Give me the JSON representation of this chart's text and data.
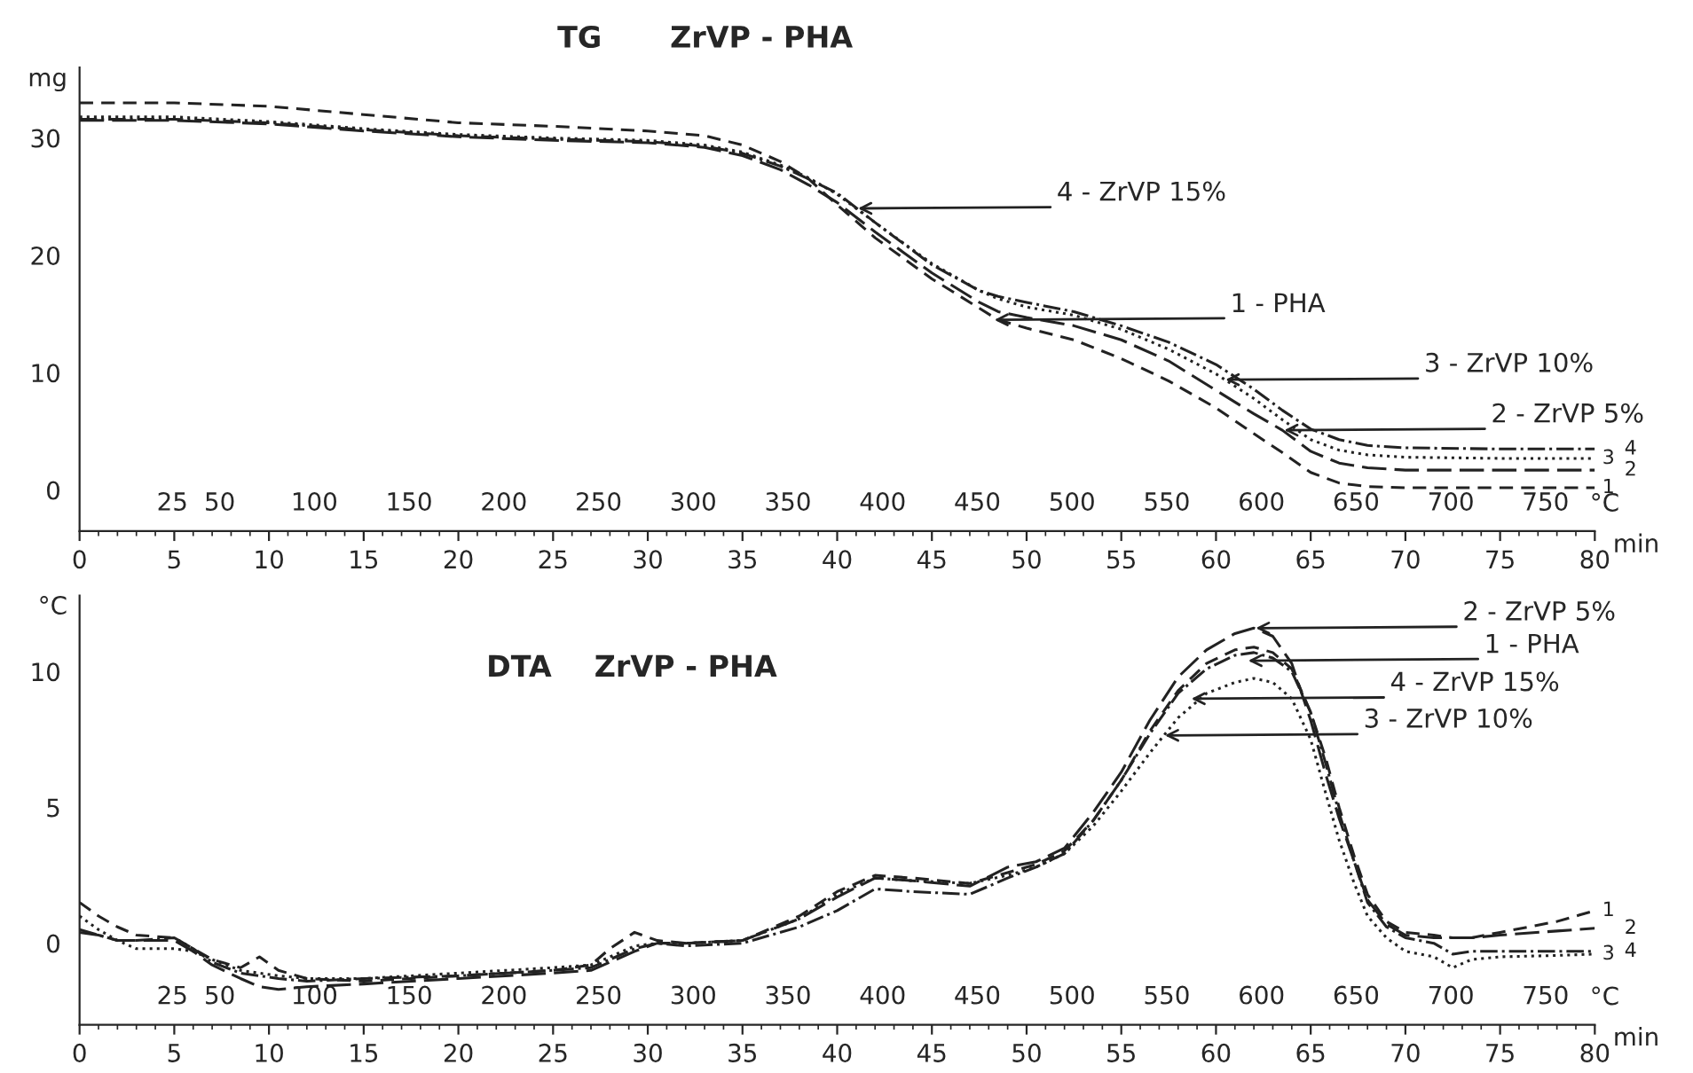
{
  "chart_data": [
    {
      "type": "line",
      "title": "TG",
      "subtitle": "ZrVP - PHA",
      "ylabel": "mg",
      "xlabel": "min",
      "x2label": "°C",
      "x": [
        0,
        5,
        10,
        15,
        20,
        25,
        30,
        33,
        35,
        37,
        38.5,
        40,
        42,
        45,
        47.5,
        48.5,
        50,
        52.5,
        55,
        57.5,
        60,
        62,
        63.5,
        65,
        66.5,
        68,
        70,
        75,
        80
      ],
      "series": [
        {
          "name": "1",
          "color": "#222222",
          "line_style": "dashed",
          "values": [
            33,
            33,
            32.7,
            32,
            31.3,
            31,
            30.6,
            30.2,
            29.4,
            28,
            26.5,
            24.3,
            21.5,
            18,
            15.5,
            14.5,
            13.8,
            12.8,
            11.2,
            9.3,
            7,
            4.8,
            3.2,
            1.5,
            0.6,
            0.3,
            0.2,
            0.2,
            0.2
          ]
        },
        {
          "name": "2",
          "color": "#222222",
          "line_style": "dashed",
          "values": [
            31.5,
            31.5,
            31.2,
            30.6,
            30.1,
            29.8,
            29.6,
            29.2,
            28.5,
            27.3,
            26,
            24.5,
            22,
            18.5,
            16,
            15.2,
            14.7,
            14,
            12.8,
            11,
            8.5,
            6.5,
            5.1,
            3.3,
            2.3,
            1.9,
            1.7,
            1.7,
            1.7
          ]
        },
        {
          "name": "3",
          "color": "#222222",
          "line_style": "dotted",
          "values": [
            31.8,
            31.8,
            31.4,
            30.8,
            30.3,
            30,
            29.8,
            29.4,
            28.8,
            27.7,
            26.6,
            25.2,
            22.8,
            19.3,
            17,
            16.3,
            15.6,
            14.9,
            13.7,
            12,
            9.9,
            7.8,
            6,
            4.3,
            3.4,
            3,
            2.8,
            2.7,
            2.7
          ]
        },
        {
          "name": "4",
          "color": "#222222",
          "line_style": "dashdot",
          "values": [
            31.6,
            31.6,
            31.3,
            30.7,
            30.2,
            29.9,
            29.7,
            29.3,
            28.7,
            27.6,
            26.5,
            25.3,
            22.8,
            19.2,
            17,
            16.5,
            16,
            15.2,
            14,
            12.6,
            10.7,
            8.6,
            6.8,
            5.2,
            4.3,
            3.8,
            3.6,
            3.5,
            3.5
          ]
        }
      ],
      "annotations": [
        {
          "text": "4 - ZrVP 15%",
          "x": 41.1,
          "y": 24.0
        },
        {
          "text": "1 - PHA",
          "x": 48.3,
          "y": 14.5
        },
        {
          "text": "3 - ZrVP 10%",
          "x": 60.5,
          "y": 9.4
        },
        {
          "text": "2 - ZrVP 5%",
          "x": 63.6,
          "y": 5.1
        }
      ],
      "xlim": [
        0,
        80
      ],
      "xticks": [
        0,
        5,
        10,
        15,
        20,
        25,
        30,
        35,
        40,
        45,
        50,
        55,
        60,
        65,
        70,
        75,
        {
          "value": 80,
          "label": "80"
        }
      ],
      "ylim": [
        -3.5,
        36
      ],
      "yticks": [
        0,
        10,
        20,
        30
      ],
      "x2lim": [
        -24,
        776
      ],
      "x2ticks": [
        25,
        50,
        100,
        150,
        200,
        250,
        300,
        350,
        400,
        450,
        500,
        550,
        600,
        650,
        700,
        750
      ],
      "grid": false,
      "legend": false
    },
    {
      "type": "line",
      "title": "DTA",
      "subtitle": "ZrVP - PHA",
      "ylabel": "°C",
      "xlabel": "min",
      "x2label": "°C",
      "x": [
        0,
        1,
        2,
        3,
        5,
        6,
        7,
        8.5,
        9.5,
        10.5,
        12,
        15,
        20,
        25,
        27,
        28,
        29.3,
        30.5,
        32,
        35,
        38,
        40,
        42,
        44,
        47,
        49,
        50.5,
        52,
        53.5,
        55,
        56.5,
        58,
        59.5,
        61,
        62,
        63,
        64,
        65,
        65.8,
        66.5,
        67.3,
        68,
        69,
        70,
        71.5,
        72.5,
        73.5,
        75,
        78,
        80
      ],
      "series": [
        {
          "name": "1",
          "color": "#222222",
          "line_style": "dashed",
          "values": [
            1.5,
            1.0,
            0.6,
            0.3,
            0.2,
            -0.2,
            -0.6,
            -0.9,
            -0.5,
            -1.0,
            -1.3,
            -1.4,
            -1.2,
            -1.0,
            -0.8,
            -0.2,
            0.4,
            0.1,
            0.0,
            0.1,
            1.0,
            1.9,
            2.5,
            2.4,
            2.2,
            2.6,
            2.9,
            3.4,
            4.5,
            6,
            7.8,
            9.3,
            10.3,
            10.8,
            10.9,
            10.7,
            10.1,
            8.5,
            6.8,
            5,
            3.2,
            1.8,
            0.8,
            0.4,
            0.3,
            0.2,
            0.2,
            0.4,
            0.8,
            1.2
          ]
        },
        {
          "name": "2",
          "color": "#222222",
          "line_style": "dashed",
          "values": [
            0.4,
            0.3,
            0.1,
            0.1,
            0.1,
            -0.3,
            -0.8,
            -1.3,
            -1.6,
            -1.7,
            -1.6,
            -1.5,
            -1.3,
            -1.1,
            -1.0,
            -0.7,
            -0.3,
            0.0,
            0.0,
            0.1,
            0.9,
            1.7,
            2.4,
            2.3,
            2.1,
            2.8,
            3.0,
            3.5,
            4.8,
            6.3,
            8.2,
            9.8,
            10.8,
            11.4,
            11.6,
            11.3,
            10.3,
            8.2,
            6.2,
            4.6,
            3,
            1.6,
            0.7,
            0.3,
            0.2,
            0.2,
            0.2,
            0.3,
            0.45,
            0.55
          ]
        },
        {
          "name": "3",
          "color": "#222222",
          "line_style": "dotted",
          "values": [
            1.0,
            0.5,
            0.1,
            -0.2,
            -0.2,
            -0.3,
            -0.6,
            -1.0,
            -1.1,
            -1.2,
            -1.3,
            -1.3,
            -1.1,
            -0.9,
            -0.8,
            -0.5,
            -0.1,
            0.0,
            0.0,
            0.1,
            0.9,
            1.8,
            2.4,
            2.3,
            2.2,
            2.5,
            2.8,
            3.3,
            4.3,
            5.6,
            7.0,
            8.3,
            9.2,
            9.6,
            9.75,
            9.6,
            9.0,
            7.5,
            5.5,
            3.8,
            2.2,
            1.0,
            0.2,
            -0.3,
            -0.5,
            -0.9,
            -0.6,
            -0.5,
            -0.45,
            -0.4
          ]
        },
        {
          "name": "4",
          "color": "#222222",
          "line_style": "dashdot",
          "values": [
            0.5,
            0.3,
            0.1,
            0.1,
            0.2,
            -0.2,
            -0.7,
            -1.1,
            -1.2,
            -1.3,
            -1.4,
            -1.3,
            -1.2,
            -1.0,
            -0.9,
            -0.6,
            -0.2,
            0.0,
            -0.1,
            0.0,
            0.6,
            1.2,
            2.0,
            1.9,
            1.8,
            2.4,
            2.8,
            3.3,
            4.5,
            6.0,
            7.7,
            9.2,
            10.1,
            10.6,
            10.7,
            10.5,
            10.0,
            8.5,
            6.6,
            4.8,
            3.0,
            1.5,
            0.6,
            0.2,
            0.0,
            -0.4,
            -0.3,
            -0.3,
            -0.3,
            -0.3
          ]
        }
      ],
      "annotations": [
        {
          "text": "2 - ZrVP 5%",
          "x": 62.1,
          "y": 11.6
        },
        {
          "text": "1 - PHA",
          "x": 61.7,
          "y": 10.4
        },
        {
          "text": "4 - ZrVP 15%",
          "x": 58.7,
          "y": 9.0
        },
        {
          "text": "3 - ZrVP 10%",
          "x": 57.3,
          "y": 7.65
        }
      ],
      "xlim": [
        0,
        80
      ],
      "xticks": [
        0,
        5,
        10,
        15,
        20,
        25,
        30,
        35,
        40,
        45,
        50,
        55,
        60,
        65,
        70,
        75,
        80
      ],
      "ylim": [
        -3,
        12.8
      ],
      "yticks": [
        0,
        5,
        10
      ],
      "x2lim": [
        -24,
        776
      ],
      "x2ticks": [
        25,
        50,
        100,
        150,
        200,
        250,
        300,
        350,
        400,
        450,
        500,
        550,
        600,
        650,
        700,
        750
      ],
      "grid": false,
      "legend": false
    }
  ]
}
